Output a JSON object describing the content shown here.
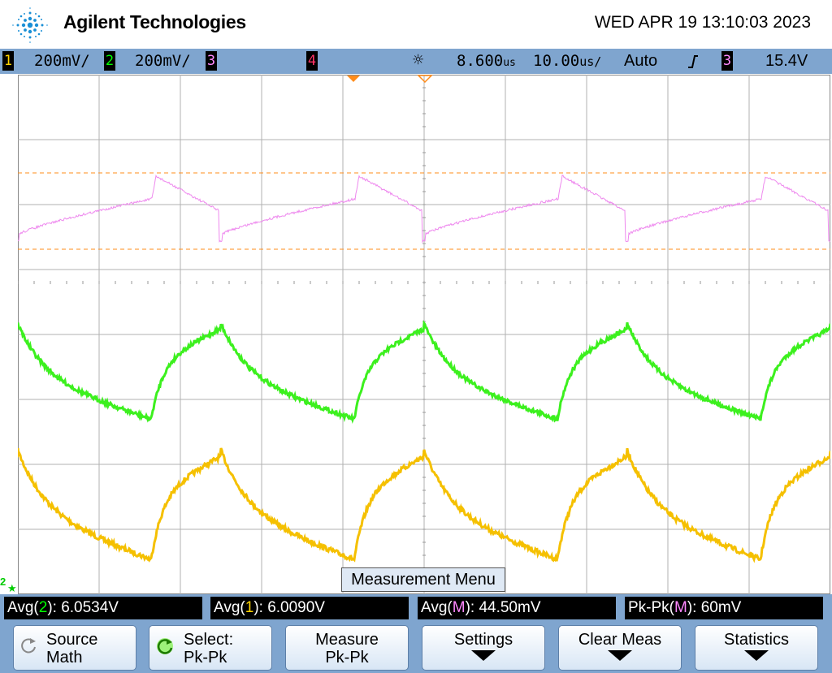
{
  "header": {
    "brand": "Agilent Technologies",
    "datetime": "WED APR 19 13:10:03 2023"
  },
  "status": {
    "ch1": {
      "num": "1",
      "scale": "200",
      "unit": "mV/",
      "color": "#ffd400"
    },
    "ch2": {
      "num": "2",
      "scale": "200",
      "unit": "mV/",
      "color": "#00ff00"
    },
    "ch3": {
      "num": "3",
      "color": "#ff88ff"
    },
    "ch4": {
      "num": "4",
      "color": "#ff3366"
    },
    "delay": "8.600",
    "delay_unit": "us",
    "timebase": "10.00",
    "timebase_unit": "us/",
    "trigger_mode": "Auto",
    "trigger_slope_icon": "rising-edge-icon",
    "trigger_source": "3",
    "trigger_level": "15.4V"
  },
  "display": {
    "divisions_x": 10,
    "divisions_y": 8,
    "colors": {
      "ch1": "#f5c000",
      "ch2": "#3cf01e",
      "math": "#ee88ee",
      "cursor": "#ff8c1a",
      "grid": "#b0b0b0"
    }
  },
  "ground_marker": "2",
  "menu_title": "Measurement Menu",
  "measurements": [
    {
      "label": "Avg(",
      "src": "2",
      "src_color": "#00ff00",
      "value": "): 6.0534V"
    },
    {
      "label": "Avg(",
      "src": "1",
      "src_color": "#ffd400",
      "value": "): 6.0090V"
    },
    {
      "label": "Avg(",
      "src": "M",
      "src_color": "#ff88ff",
      "value": "): 44.50mV"
    },
    {
      "label": "Pk-Pk(",
      "src": "M",
      "src_color": "#ff88ff",
      "value": "): 60mV"
    }
  ],
  "softkeys": [
    {
      "line1": "Source",
      "line2": "Math",
      "icon": "knob-icon"
    },
    {
      "line1": "Select:",
      "line2": "Pk-Pk",
      "icon": "knob-icon"
    },
    {
      "line1": "Measure",
      "line2": "Pk-Pk"
    },
    {
      "line1": "Settings",
      "line2": ""
    },
    {
      "line1": "Clear Meas",
      "line2": ""
    },
    {
      "line1": "Statistics",
      "line2": ""
    }
  ]
}
